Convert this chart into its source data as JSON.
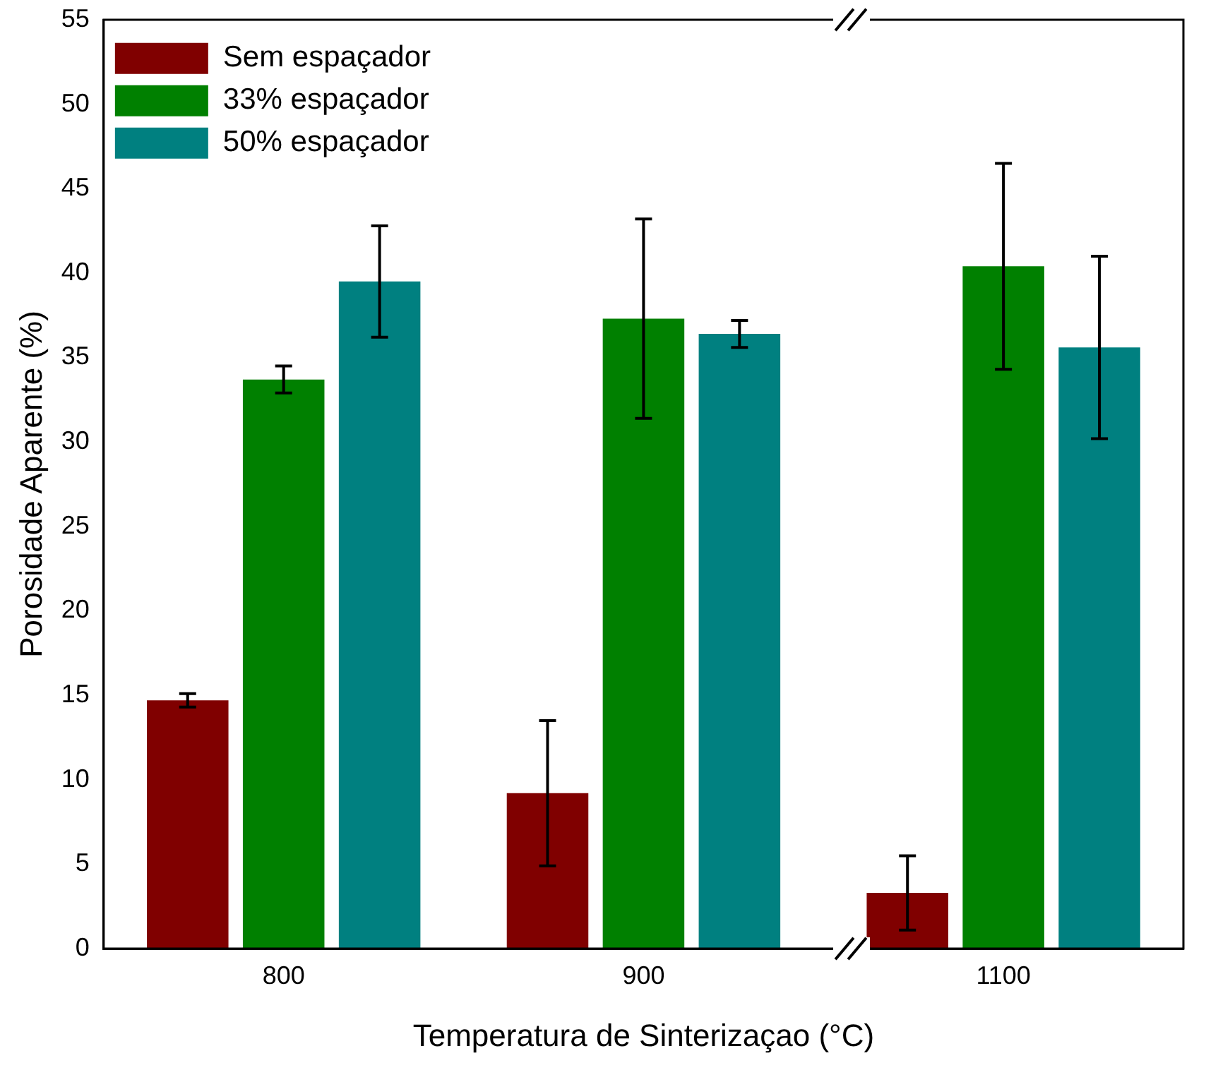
{
  "chart_data": {
    "type": "bar",
    "xlabel": "Temperatura de Sinterizaçao (°C)",
    "ylabel": "Porosidade Aparente (%)",
    "categories": [
      "800",
      "900",
      "1100"
    ],
    "series": [
      {
        "name": "Sem espaçador",
        "color": "#800000",
        "values": [
          14.7,
          9.2,
          3.3
        ],
        "errors": [
          0.4,
          4.3,
          2.2
        ]
      },
      {
        "name": "33% espaçador",
        "color": "#008000",
        "values": [
          33.7,
          37.3,
          40.4
        ],
        "errors": [
          0.8,
          5.9,
          6.1
        ]
      },
      {
        "name": "50% espaçador",
        "color": "#008080",
        "values": [
          39.5,
          36.4,
          35.6
        ],
        "errors": [
          3.3,
          0.8,
          5.4
        ]
      }
    ],
    "ylim": [
      0,
      55
    ],
    "yticks": [
      0,
      5,
      10,
      15,
      20,
      25,
      30,
      35,
      40,
      45,
      50,
      55
    ],
    "grid": false,
    "legend": "top left"
  }
}
